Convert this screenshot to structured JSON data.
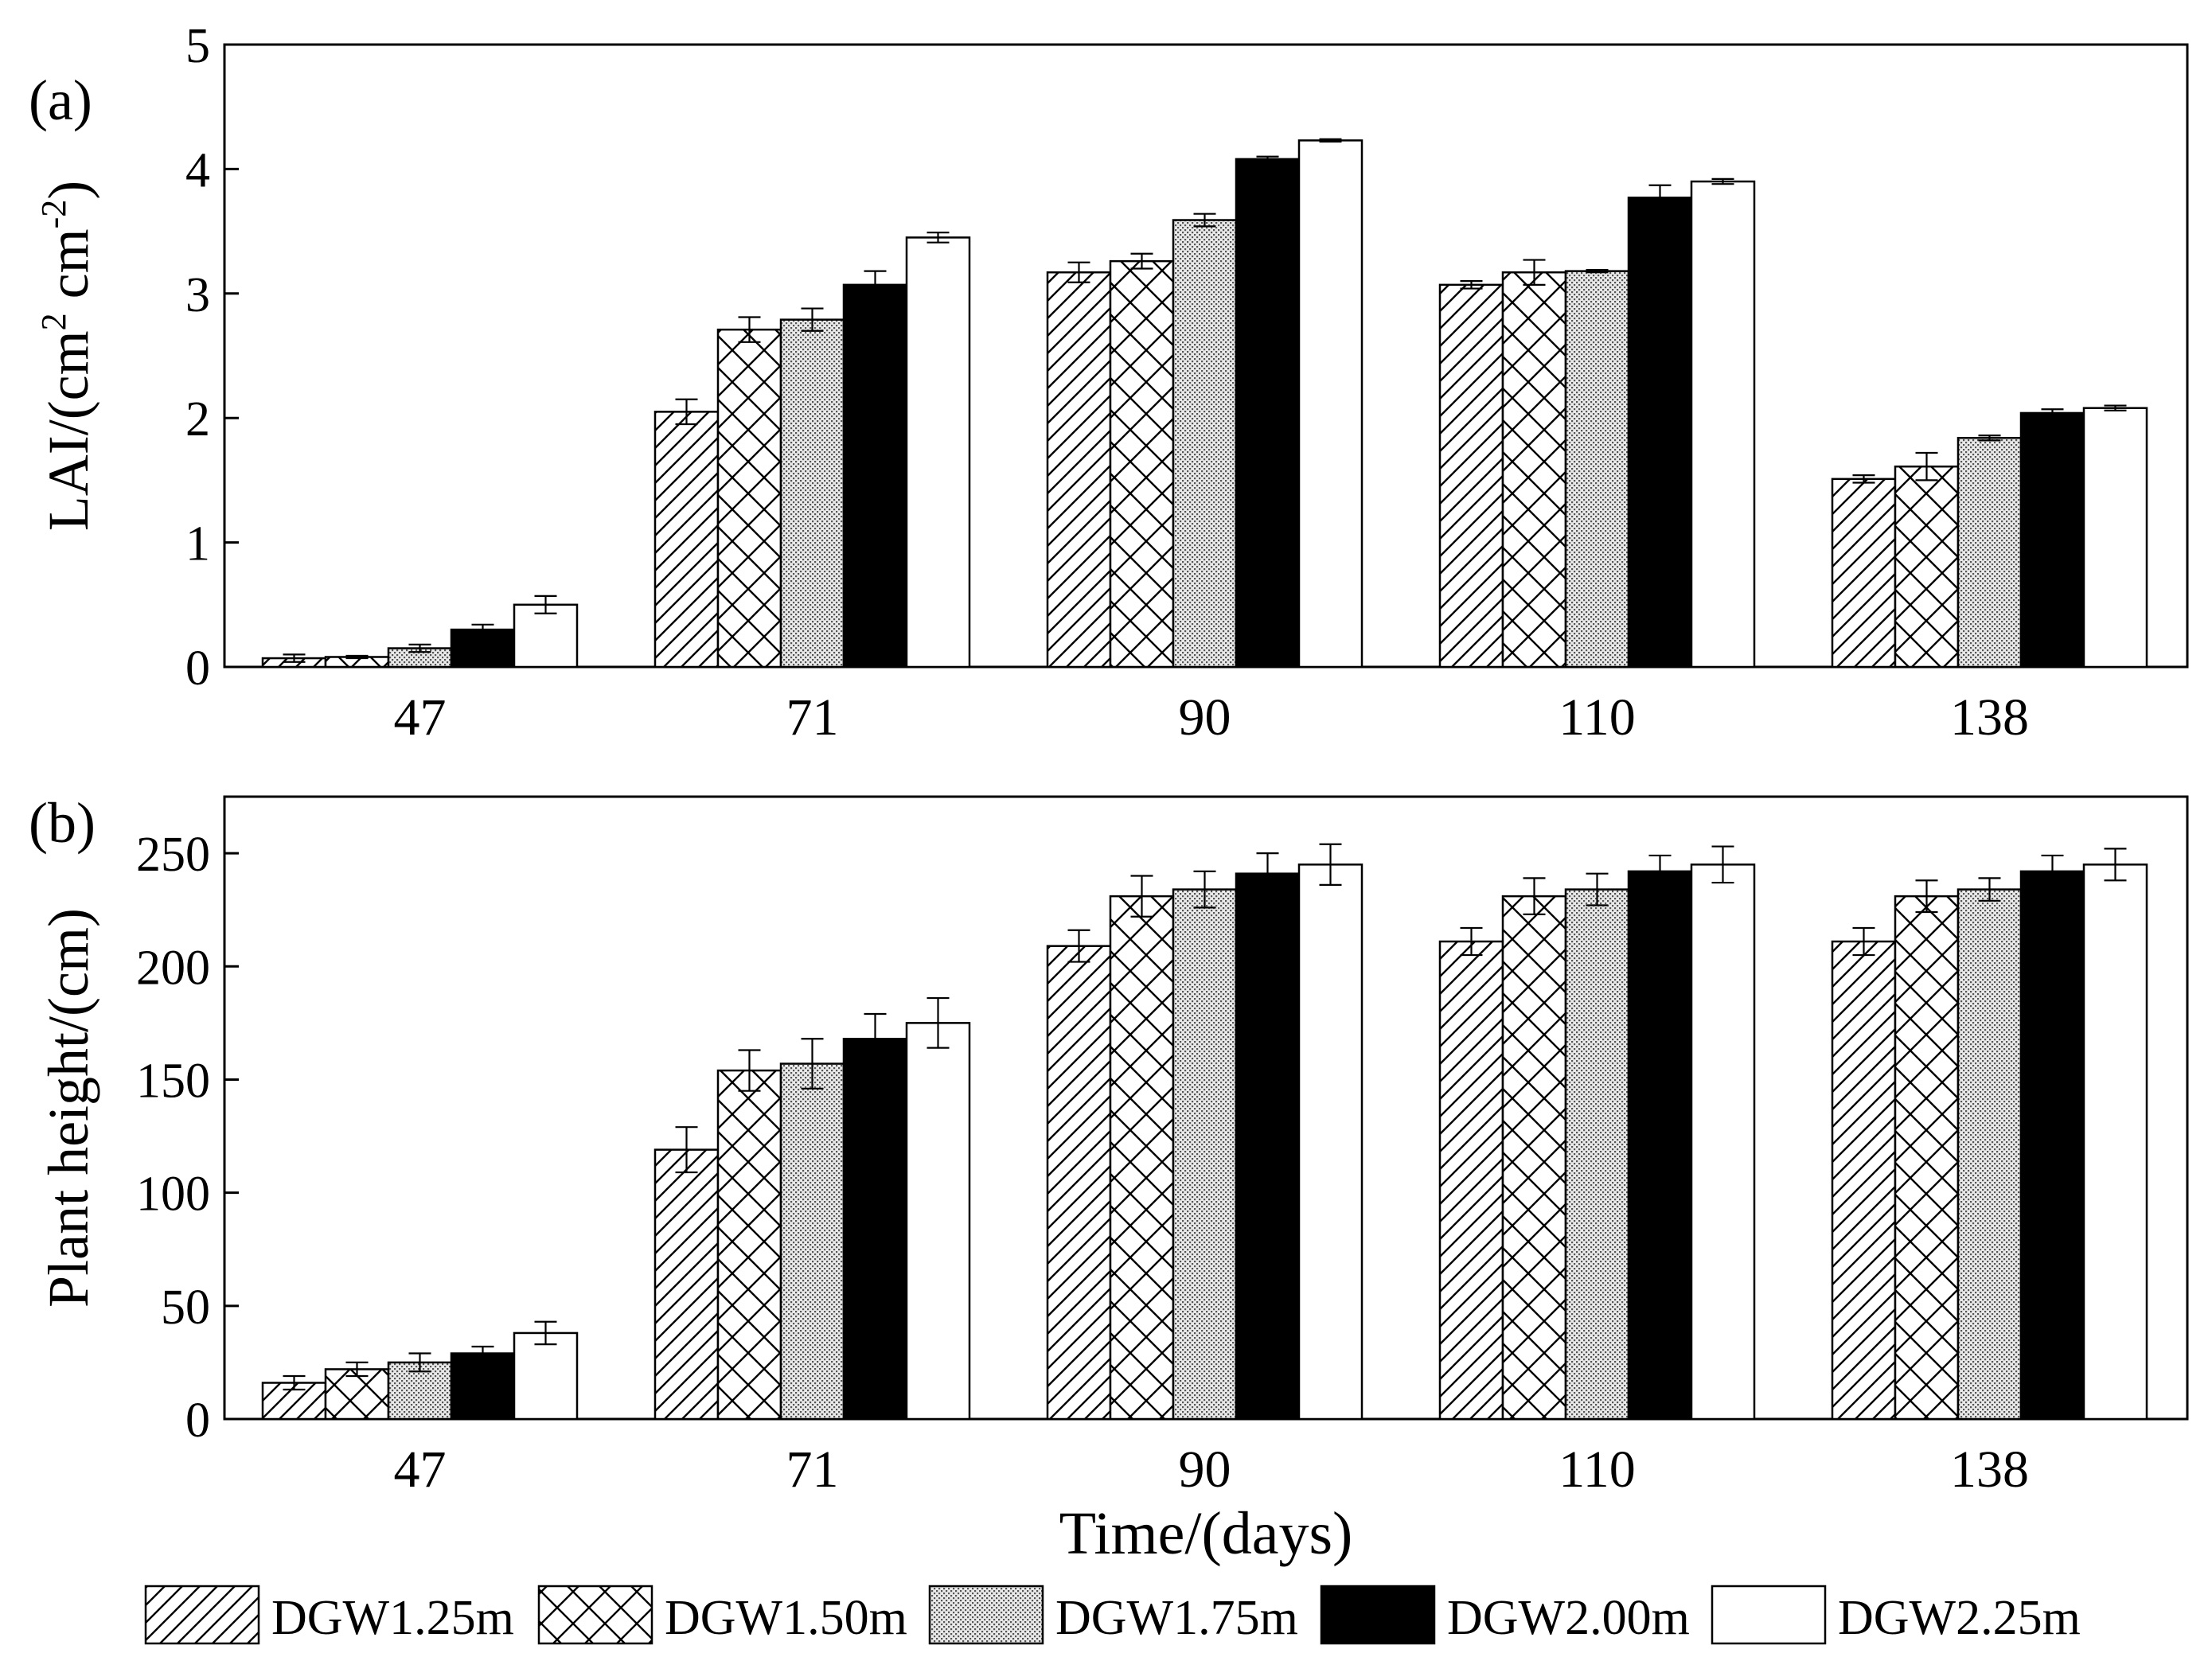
{
  "figure": {
    "xlabel": "Time/(days)",
    "legend_position": "bottom",
    "legend": [
      {
        "label": "DGW1.25m",
        "fill": "hatch-diag"
      },
      {
        "label": "DGW1.50m",
        "fill": "hatch-cross"
      },
      {
        "label": "DGW1.75m",
        "fill": "dots"
      },
      {
        "label": "DGW2.00m",
        "fill": "#000000"
      },
      {
        "label": "DGW2.25m",
        "fill": "#ffffff"
      }
    ]
  },
  "chart_data": [
    {
      "type": "bar",
      "panel_label": "(a)",
      "title": "",
      "ylabel": {
        "pre": "LAI/(cm",
        "sup1": "2",
        "mid": " cm",
        "sup2": "-2",
        "post": ")"
      },
      "ylim": [
        0,
        5
      ],
      "yticks": [
        0,
        1,
        2,
        3,
        4,
        5
      ],
      "categories": [
        "47",
        "71",
        "90",
        "110",
        "138"
      ],
      "series": [
        {
          "name": "DGW1.25m",
          "values": [
            0.07,
            2.05,
            3.17,
            3.07,
            1.51
          ],
          "errors": [
            0.03,
            0.1,
            0.08,
            0.03,
            0.03
          ]
        },
        {
          "name": "DGW1.50m",
          "values": [
            0.08,
            2.71,
            3.26,
            3.17,
            1.61
          ],
          "errors": [
            0.01,
            0.1,
            0.06,
            0.1,
            0.11
          ]
        },
        {
          "name": "DGW1.75m",
          "values": [
            0.15,
            2.79,
            3.59,
            3.18,
            1.84
          ],
          "errors": [
            0.03,
            0.09,
            0.05,
            0.01,
            0.02
          ]
        },
        {
          "name": "DGW2.00m",
          "values": [
            0.3,
            3.07,
            4.08,
            3.77,
            2.04
          ],
          "errors": [
            0.04,
            0.11,
            0.02,
            0.1,
            0.03
          ]
        },
        {
          "name": "DGW2.25m",
          "values": [
            0.5,
            3.45,
            4.23,
            3.9,
            2.08
          ],
          "errors": [
            0.07,
            0.04,
            0.01,
            0.02,
            0.02
          ]
        }
      ]
    },
    {
      "type": "bar",
      "panel_label": "(b)",
      "title": "",
      "ylabel": {
        "pre": "Plant height/(cm)"
      },
      "ylim": [
        0,
        275
      ],
      "yticks": [
        0,
        50,
        100,
        150,
        200,
        250
      ],
      "categories": [
        "47",
        "71",
        "90",
        "110",
        "138"
      ],
      "series": [
        {
          "name": "DGW1.25m",
          "values": [
            16,
            119,
            209,
            211,
            211
          ],
          "errors": [
            3,
            10,
            7,
            6,
            6
          ]
        },
        {
          "name": "DGW1.50m",
          "values": [
            22,
            154,
            231,
            231,
            231
          ],
          "errors": [
            3,
            9,
            9,
            8,
            7
          ]
        },
        {
          "name": "DGW1.75m",
          "values": [
            25,
            157,
            234,
            234,
            234
          ],
          "errors": [
            4,
            11,
            8,
            7,
            5
          ]
        },
        {
          "name": "DGW2.00m",
          "values": [
            29,
            168,
            241,
            242,
            242
          ],
          "errors": [
            3,
            11,
            9,
            7,
            7
          ]
        },
        {
          "name": "DGW2.25m",
          "values": [
            38,
            175,
            245,
            245,
            245
          ],
          "errors": [
            5,
            11,
            9,
            8,
            7
          ]
        }
      ]
    }
  ]
}
